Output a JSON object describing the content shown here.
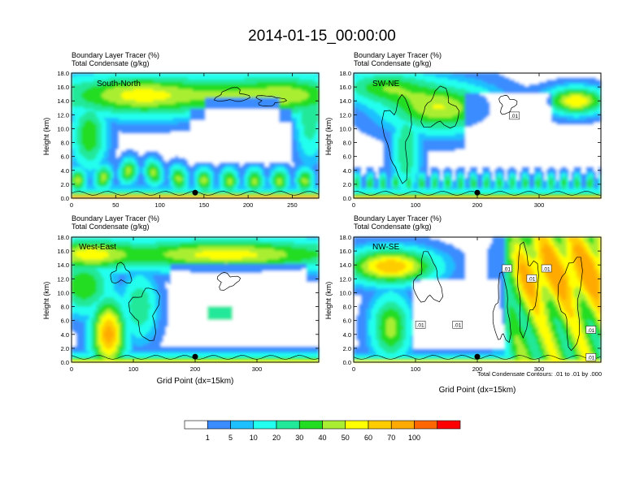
{
  "figure": {
    "title": "2014-01-15_00:00:00",
    "contour_note": "Total Condensate Contours: .01 to .01 by .000"
  },
  "chart_data": [
    {
      "type": "heatmap",
      "panel_label": "South-North",
      "title_line1": "Boundary Layer Tracer    (%)",
      "title_line2": "Total Condensate    (g/kg)",
      "ylabel": "Height (km)",
      "xlabel": "",
      "xlim": [
        0,
        280
      ],
      "ylim": [
        0,
        18
      ],
      "xticks": [
        0,
        50,
        100,
        150,
        200,
        250
      ],
      "yticks": [
        0.0,
        2.0,
        4.0,
        6.0,
        8.0,
        10.0,
        12.0,
        14.0,
        16.0,
        18.0
      ],
      "marker_x": 140,
      "contour_labels": []
    },
    {
      "type": "heatmap",
      "panel_label": "SW-NE",
      "title_line1": "Boundary Layer Tracer    (%)",
      "title_line2": "Total Condensate    (g/kg)",
      "ylabel": "Height (km)",
      "xlabel": "",
      "xlim": [
        0,
        400
      ],
      "ylim": [
        0,
        18
      ],
      "xticks": [
        0,
        100,
        200,
        300
      ],
      "yticks": [
        0.0,
        2.0,
        4.0,
        6.0,
        8.0,
        10.0,
        12.0,
        14.0,
        16.0,
        18.0
      ],
      "marker_x": 200,
      "contour_labels": [
        ".01"
      ]
    },
    {
      "type": "heatmap",
      "panel_label": "West-East",
      "title_line1": "Boundary Layer Tracer    (%)",
      "title_line2": "Total Condensate    (g/kg)",
      "ylabel": "Height (km)",
      "xlabel": "Grid Point (dx=15km)",
      "xlim": [
        0,
        400
      ],
      "ylim": [
        0,
        18
      ],
      "xticks": [
        0,
        100,
        200,
        300
      ],
      "yticks": [
        0.0,
        2.0,
        4.0,
        6.0,
        8.0,
        10.0,
        12.0,
        14.0,
        16.0,
        18.0
      ],
      "marker_x": 200,
      "contour_labels": []
    },
    {
      "type": "heatmap",
      "panel_label": "NW-SE",
      "title_line1": "Boundary Layer Tracer    (%)",
      "title_line2": "Total Condensate    (g/kg)",
      "ylabel": "Height (km)",
      "xlabel": "Grid Point (dx=15km)",
      "xlim": [
        0,
        400
      ],
      "ylim": [
        0,
        18
      ],
      "xticks": [
        0,
        100,
        200,
        300
      ],
      "yticks": [
        0.0,
        2.0,
        4.0,
        6.0,
        8.0,
        10.0,
        12.0,
        14.0,
        16.0,
        18.0
      ],
      "marker_x": 200,
      "contour_labels": [
        ".01",
        ".01",
        ".01",
        ".01",
        ".01",
        ".01",
        ".01"
      ]
    }
  ],
  "colorbar": {
    "labels": [
      "1",
      "5",
      "10",
      "20",
      "30",
      "40",
      "50",
      "60",
      "70",
      "100"
    ],
    "colors": [
      "#ffffff",
      "#3a8cff",
      "#1fc0ff",
      "#22ffee",
      "#22e899",
      "#22dd22",
      "#aaee33",
      "#ffff00",
      "#ffcc00",
      "#ffaa00",
      "#ff6600",
      "#ff0000"
    ]
  }
}
